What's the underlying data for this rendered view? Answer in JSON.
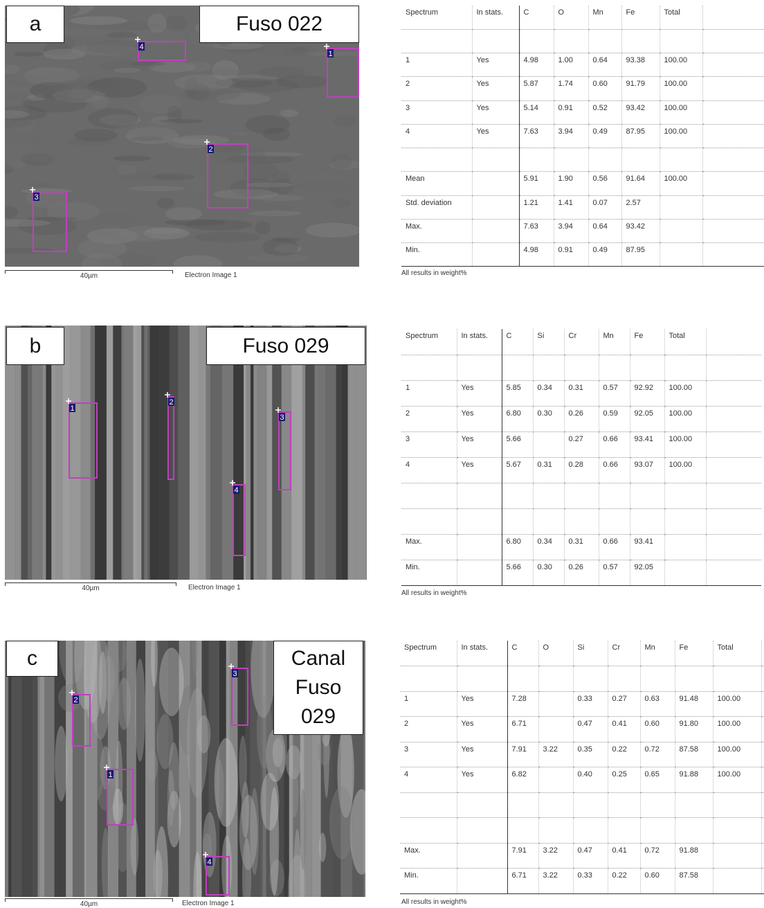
{
  "panels": [
    {
      "label": "a",
      "title": "Fuso 022",
      "image": {
        "markers": [
          "1",
          "2",
          "3",
          "4"
        ],
        "scale_bar": "40µm",
        "caption": "Electron Image 1"
      },
      "table": {
        "header": [
          "Spectrum",
          "In stats.",
          "C",
          "O",
          "Mn",
          "Fe",
          "Total"
        ],
        "rows": [
          null,
          [
            "1",
            "Yes",
            "4.98",
            "1.00",
            "0.64",
            "93.38",
            "100.00"
          ],
          [
            "2",
            "Yes",
            "5.87",
            "1.74",
            "0.60",
            "91.79",
            "100.00"
          ],
          [
            "3",
            "Yes",
            "5.14",
            "0.91",
            "0.52",
            "93.42",
            "100.00"
          ],
          [
            "4",
            "Yes",
            "7.63",
            "3.94",
            "0.49",
            "87.95",
            "100.00"
          ],
          null,
          [
            "Mean",
            null,
            "5.91",
            "1.90",
            "0.56",
            "91.64",
            "100.00"
          ],
          [
            "Std. deviation",
            null,
            "1.21",
            "1.41",
            "0.07",
            "2.57",
            null
          ],
          [
            "Max.",
            null,
            "7.63",
            "3.94",
            "0.64",
            "93.42",
            null
          ],
          [
            "Min.",
            null,
            "4.98",
            "0.91",
            "0.49",
            "87.95",
            null
          ]
        ],
        "note": "All results in weight%"
      }
    },
    {
      "label": "b",
      "title": "Fuso 029",
      "image": {
        "markers": [
          "1",
          "2",
          "3",
          "4"
        ],
        "scale_bar": "40µm",
        "caption": "Electron Image 1"
      },
      "table": {
        "header": [
          "Spectrum",
          "In stats.",
          "C",
          "Si",
          "Cr",
          "Mn",
          "Fe",
          "Total"
        ],
        "rows": [
          null,
          [
            "1",
            "Yes",
            "5.85",
            "0.34",
            "0.31",
            "0.57",
            "92.92",
            "100.00"
          ],
          [
            "2",
            "Yes",
            "6.80",
            "0.30",
            "0.26",
            "0.59",
            "92.05",
            "100.00"
          ],
          [
            "3",
            "Yes",
            "5.66",
            null,
            "0.27",
            "0.66",
            "93.41",
            "100.00"
          ],
          [
            "4",
            "Yes",
            "5.67",
            "0.31",
            "0.28",
            "0.66",
            "93.07",
            "100.00"
          ],
          null,
          null,
          [
            "Max.",
            null,
            "6.80",
            "0.34",
            "0.31",
            "0.66",
            "93.41",
            null
          ],
          [
            "Min.",
            null,
            "5.66",
            "0.30",
            "0.26",
            "0.57",
            "92.05",
            null
          ]
        ],
        "note": "All results in weight%"
      }
    },
    {
      "label": "c",
      "title": "Canal Fuso 029",
      "image": {
        "markers": [
          "1",
          "2",
          "3",
          "4"
        ],
        "scale_bar": "40µm",
        "caption": "Electron Image 1"
      },
      "table": {
        "header": [
          "Spectrum",
          "In stats.",
          "C",
          "O",
          "Si",
          "Cr",
          "Mn",
          "Fe",
          "Total"
        ],
        "rows": [
          null,
          [
            "1",
            "Yes",
            "7.28",
            null,
            "0.33",
            "0.27",
            "0.63",
            "91.48",
            "100.00"
          ],
          [
            "2",
            "Yes",
            "6.71",
            null,
            "0.47",
            "0.41",
            "0.60",
            "91.80",
            "100.00"
          ],
          [
            "3",
            "Yes",
            "7.91",
            "3.22",
            "0.35",
            "0.22",
            "0.72",
            "87.58",
            "100.00"
          ],
          [
            "4",
            "Yes",
            "6.82",
            null,
            "0.40",
            "0.25",
            "0.65",
            "91.88",
            "100.00"
          ],
          null,
          null,
          [
            "Max.",
            null,
            "7.91",
            "3.22",
            "0.47",
            "0.41",
            "0.72",
            "91.88",
            null
          ],
          [
            "Min.",
            null,
            "6.71",
            "3.22",
            "0.33",
            "0.22",
            "0.60",
            "87.58",
            null
          ]
        ],
        "note": "All results in weight%"
      }
    }
  ]
}
